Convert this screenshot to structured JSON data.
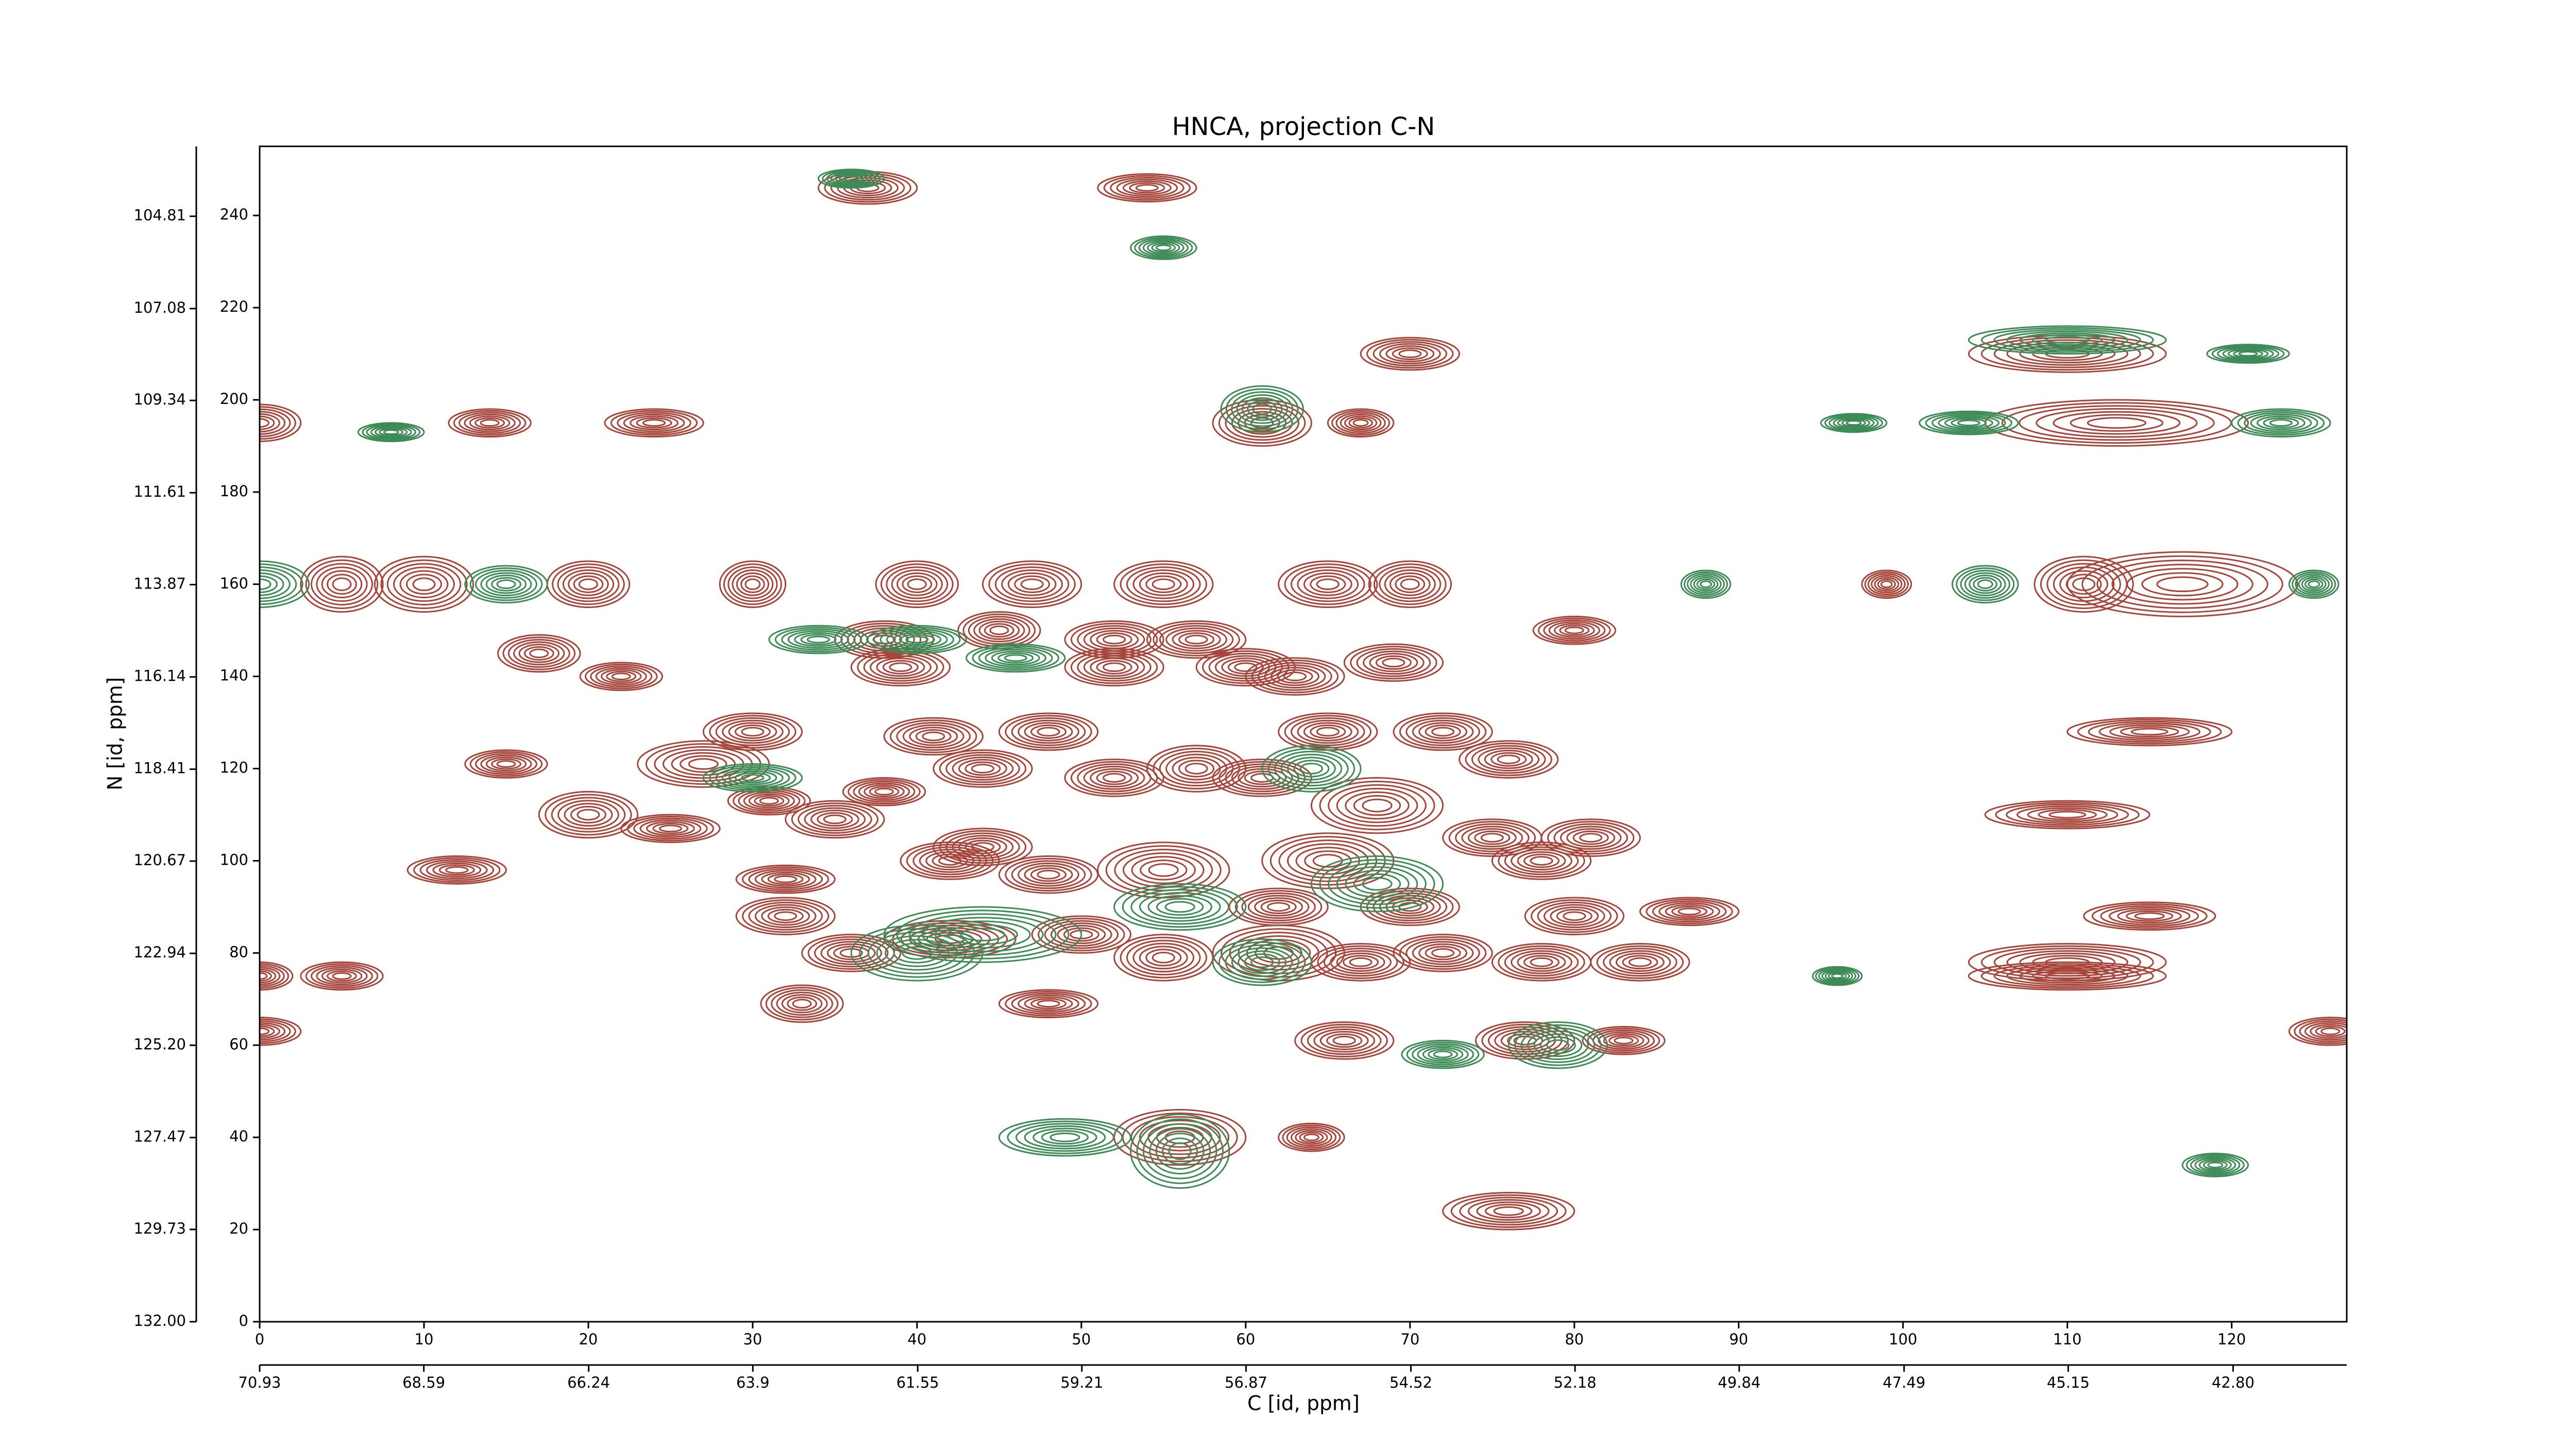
{
  "chart_data": {
    "type": "contour",
    "title": "HNCA, projection C-N",
    "xlabel": "C [id, ppm]",
    "ylabel": "N [id, ppm]",
    "xlim": [
      0,
      127
    ],
    "ylim": [
      0,
      255
    ],
    "xticks": [
      0,
      10,
      20,
      30,
      40,
      50,
      60,
      70,
      80,
      90,
      100,
      110,
      120
    ],
    "yticks": [
      0,
      20,
      40,
      60,
      80,
      100,
      120,
      140,
      160,
      180,
      200,
      220,
      240
    ],
    "x2lim": [
      70.93,
      41.18
    ],
    "x2ticks": [
      70.93,
      68.59,
      66.24,
      63.9,
      61.55,
      59.21,
      56.87,
      54.52,
      52.18,
      49.84,
      47.49,
      45.15,
      {
        "value": 42.8,
        "label": "42.80"
      }
    ],
    "y2lim": [
      132,
      103.09
    ],
    "y2ticks": [
      {
        "value": 132,
        "label": "132.00"
      },
      129.73,
      127.47,
      {
        "value": 125.2,
        "label": "125.20"
      },
      122.94,
      120.67,
      118.41,
      116.14,
      113.87,
      111.61,
      109.34,
      107.08,
      104.81
    ],
    "series": [
      {
        "color": "#a8453b",
        "x": [
          37,
          54,
          70,
          110,
          0,
          14,
          24,
          61,
          67,
          113,
          5,
          10,
          20,
          30,
          40,
          47,
          55,
          65,
          70,
          99,
          111,
          117,
          17,
          22,
          38,
          39,
          45,
          52,
          57,
          52,
          60,
          63,
          69,
          80,
          15,
          27,
          30,
          41,
          48,
          44,
          38,
          31,
          20,
          25,
          35,
          44,
          52,
          57,
          61,
          65,
          72,
          76,
          68,
          75,
          81,
          78,
          65,
          55,
          48,
          42,
          32,
          12,
          32,
          36,
          42,
          50,
          55,
          62,
          67,
          72,
          78,
          80,
          87,
          84,
          70,
          62,
          110,
          110,
          115,
          115,
          33,
          48,
          66,
          77,
          83,
          126,
          0,
          56,
          64,
          76,
          5,
          0,
          110
        ],
        "y": [
          246,
          246,
          210,
          210,
          195,
          195,
          195,
          195,
          195,
          195,
          160,
          160,
          160,
          160,
          160,
          160,
          160,
          160,
          160,
          160,
          160,
          160,
          145,
          140,
          148,
          142,
          150,
          148,
          148,
          142,
          142,
          140,
          143,
          150,
          121,
          121,
          128,
          127,
          128,
          120,
          115,
          113,
          110,
          107,
          109,
          103,
          118,
          120,
          118,
          128,
          128,
          122,
          112,
          105,
          105,
          100,
          100,
          98,
          97,
          100,
          96,
          98,
          88,
          80,
          83,
          84,
          79,
          80,
          78,
          80,
          78,
          88,
          89,
          78,
          90,
          90,
          78,
          110,
          128,
          88,
          69,
          69,
          61,
          61,
          61,
          63,
          63,
          40,
          40,
          24,
          75,
          75,
          75
        ],
        "rx": [
          3,
          3,
          3,
          6,
          2.5,
          2.5,
          3,
          3,
          2,
          8,
          2.5,
          3,
          2.5,
          2,
          2.5,
          3,
          3,
          3,
          2.5,
          1.5,
          3,
          7,
          2.5,
          2.5,
          3,
          3,
          2.5,
          3,
          3,
          3,
          3,
          3,
          3,
          2.5,
          2.5,
          4,
          3,
          3,
          3,
          3,
          2.5,
          2.5,
          3,
          3,
          3,
          3,
          3,
          3,
          3,
          3,
          3,
          3,
          4,
          3,
          3,
          3,
          4,
          4,
          3,
          3,
          3,
          3,
          3,
          3,
          4,
          3,
          3,
          4,
          3,
          3,
          3,
          3,
          3,
          3,
          3,
          3,
          6,
          5,
          5,
          4,
          2.5,
          3,
          3,
          3,
          2.5,
          2.5,
          2.5,
          4,
          2,
          4,
          2.5,
          2,
          6
        ],
        "ry": [
          3.5,
          3,
          3.5,
          4,
          4,
          3,
          3,
          5,
          3,
          5,
          6,
          6,
          5,
          5,
          5,
          5,
          5,
          5,
          5,
          3,
          6,
          7,
          4,
          3,
          4,
          4,
          4,
          4,
          4,
          4,
          4,
          4,
          4,
          3,
          3,
          5,
          4,
          4,
          4,
          4,
          3,
          3,
          5,
          3,
          4,
          4,
          4,
          5,
          4,
          4,
          4,
          4,
          6,
          4,
          4,
          4,
          6,
          6,
          4,
          4,
          3,
          3,
          4,
          4,
          4,
          4,
          5,
          6,
          4,
          4,
          4,
          4,
          3,
          4,
          4,
          4,
          4,
          3,
          3,
          3,
          4,
          3,
          4,
          4,
          3,
          3,
          3,
          6,
          3,
          4,
          3,
          3,
          3
        ]
      },
      {
        "color": "#3e8b57",
        "x": [
          36,
          55,
          110,
          121,
          8,
          61,
          97,
          104,
          123,
          0,
          15,
          88,
          105,
          125,
          34,
          40,
          46,
          44,
          56,
          61,
          40,
          68,
          79,
          49,
          56,
          72,
          119,
          96,
          64,
          30
        ],
        "y": [
          248,
          233,
          213,
          210,
          193,
          198,
          195,
          195,
          195,
          160,
          160,
          160,
          160,
          160,
          148,
          148,
          144,
          84,
          90,
          78,
          80,
          95,
          60,
          40,
          37,
          58,
          34,
          75,
          120,
          118
        ],
        "rx": [
          2,
          2,
          6,
          2.5,
          2,
          2.5,
          2,
          3,
          3,
          3,
          2.5,
          1.5,
          2,
          1.5,
          3,
          3,
          3,
          6,
          4,
          3,
          4,
          4,
          3,
          4,
          3,
          2.5,
          2,
          1.5,
          3,
          3
        ],
        "ry": [
          2,
          2.5,
          3,
          2,
          2,
          5,
          2,
          2.5,
          3,
          5,
          4,
          3,
          4,
          3,
          3,
          3,
          3,
          6,
          5,
          5,
          6,
          6,
          5,
          4,
          8,
          3,
          2.5,
          2,
          5,
          3
        ]
      }
    ]
  }
}
